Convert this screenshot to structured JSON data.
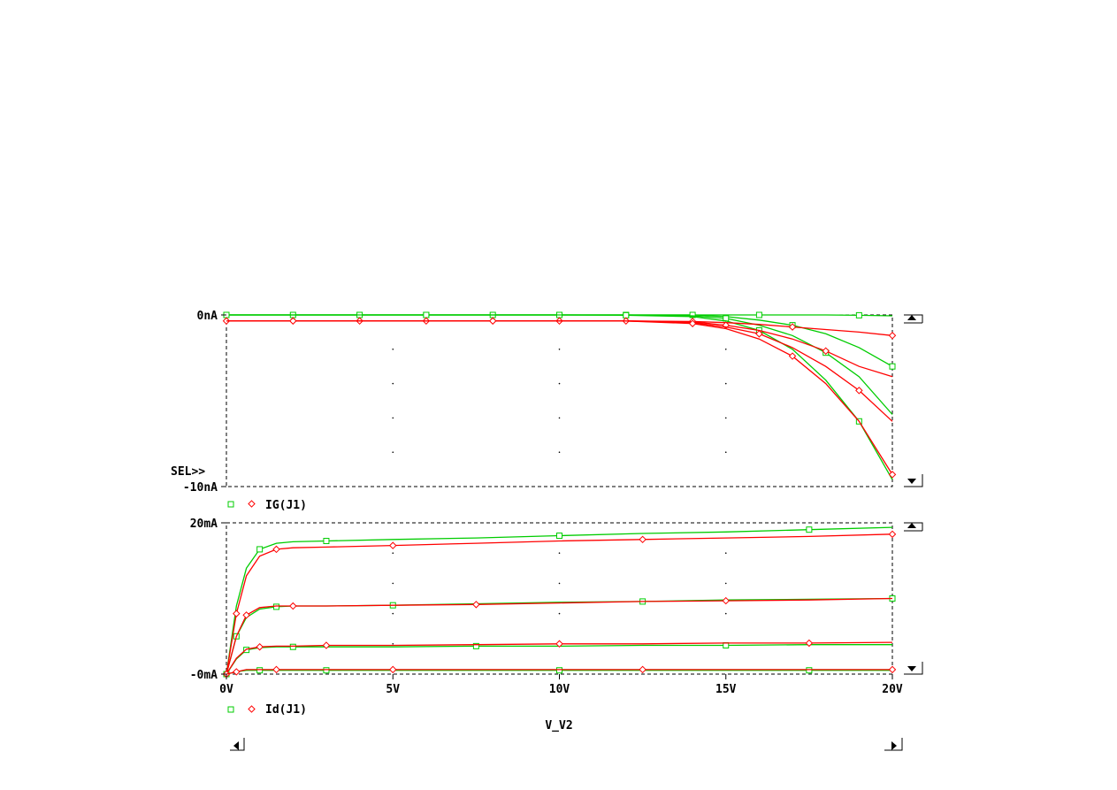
{
  "chart_data": [
    {
      "type": "line",
      "ylim": [
        -10,
        0
      ],
      "y_ticks": [
        "0nA",
        "-10nA"
      ],
      "selector_label": "SEL>>",
      "legend": {
        "marker_colors": [
          "#00cc00",
          "#ff0000"
        ],
        "label": "IG(J1)"
      },
      "grid": true,
      "series": [
        {
          "color": "#00cc00",
          "marker": "square",
          "x": [
            0,
            2,
            4,
            6,
            8,
            10,
            12,
            14,
            15,
            16,
            17,
            18,
            19,
            20
          ],
          "values": [
            0,
            0,
            0,
            0,
            0,
            0,
            0,
            0,
            0,
            0,
            0,
            0,
            -0.02,
            -0.05
          ]
        },
        {
          "color": "#00cc00",
          "marker": "square",
          "x": [
            0,
            2,
            4,
            6,
            8,
            10,
            12,
            14,
            15,
            16,
            17,
            18,
            19,
            20
          ],
          "values": [
            0,
            0,
            0,
            0,
            0,
            0,
            0,
            0,
            -0.1,
            -0.3,
            -0.6,
            -1.1,
            -1.9,
            -3.0
          ]
        },
        {
          "color": "#00cc00",
          "marker": "square",
          "x": [
            0,
            2,
            4,
            6,
            8,
            10,
            12,
            14,
            15,
            16,
            17,
            18,
            19,
            20
          ],
          "values": [
            0,
            0,
            0,
            0,
            0,
            0,
            0,
            -0.05,
            -0.2,
            -0.6,
            -1.2,
            -2.2,
            -3.6,
            -5.8
          ]
        },
        {
          "color": "#00cc00",
          "marker": "square",
          "x": [
            0,
            2,
            4,
            6,
            8,
            10,
            12,
            14,
            15,
            16,
            17,
            18,
            19,
            20
          ],
          "values": [
            0,
            0,
            0,
            0,
            0,
            0,
            -0.02,
            -0.1,
            -0.35,
            -0.9,
            -2.0,
            -3.8,
            -6.2,
            -9.6
          ]
        },
        {
          "color": "#ff0000",
          "marker": "diamond",
          "x": [
            0,
            2,
            4,
            6,
            8,
            10,
            12,
            14,
            15,
            16,
            17,
            18,
            19,
            20
          ],
          "values": [
            -0.35,
            -0.35,
            -0.35,
            -0.35,
            -0.35,
            -0.35,
            -0.35,
            -0.38,
            -0.45,
            -0.55,
            -0.7,
            -0.85,
            -1.0,
            -1.2
          ]
        },
        {
          "color": "#ff0000",
          "marker": "diamond",
          "x": [
            0,
            2,
            4,
            6,
            8,
            10,
            12,
            14,
            15,
            16,
            17,
            18,
            19,
            20
          ],
          "values": [
            -0.35,
            -0.35,
            -0.35,
            -0.35,
            -0.35,
            -0.35,
            -0.35,
            -0.4,
            -0.6,
            -0.9,
            -1.4,
            -2.1,
            -3.0,
            -3.6
          ]
        },
        {
          "color": "#ff0000",
          "marker": "diamond",
          "x": [
            0,
            2,
            4,
            6,
            8,
            10,
            12,
            14,
            15,
            16,
            17,
            18,
            19,
            20
          ],
          "values": [
            -0.35,
            -0.35,
            -0.35,
            -0.35,
            -0.35,
            -0.35,
            -0.35,
            -0.45,
            -0.7,
            -1.1,
            -1.9,
            -3.0,
            -4.4,
            -6.2
          ]
        },
        {
          "color": "#ff0000",
          "marker": "diamond",
          "x": [
            0,
            2,
            4,
            6,
            8,
            10,
            12,
            14,
            15,
            16,
            17,
            18,
            19,
            20
          ],
          "values": [
            -0.35,
            -0.35,
            -0.35,
            -0.35,
            -0.35,
            -0.35,
            -0.35,
            -0.5,
            -0.8,
            -1.4,
            -2.4,
            -4.0,
            -6.2,
            -9.3
          ]
        }
      ]
    },
    {
      "type": "line",
      "ylim": [
        0,
        20
      ],
      "y_ticks": [
        "20mA",
        "-0mA"
      ],
      "x_ticks": [
        "0V",
        "5V",
        "10V",
        "15V",
        "20V"
      ],
      "xlim": [
        0,
        20
      ],
      "xlabel": "V_V2",
      "legend": {
        "marker_colors": [
          "#00cc00",
          "#ff0000"
        ],
        "label": "Id(J1)"
      },
      "grid": true,
      "series": [
        {
          "color": "#00cc00",
          "marker": "square",
          "x": [
            0,
            0.3,
            0.6,
            1,
            1.5,
            2,
            3,
            5,
            7.5,
            10,
            12.5,
            15,
            17.5,
            20
          ],
          "values": [
            0,
            9,
            14,
            16.5,
            17.3,
            17.5,
            17.6,
            17.8,
            18.0,
            18.3,
            18.6,
            18.8,
            19.1,
            19.4
          ]
        },
        {
          "color": "#00cc00",
          "marker": "square",
          "x": [
            0,
            0.3,
            0.6,
            1,
            1.5,
            2,
            3,
            5,
            7.5,
            10,
            12.5,
            15,
            17.5,
            20
          ],
          "values": [
            0,
            5,
            7.5,
            8.6,
            8.9,
            9.0,
            9.0,
            9.1,
            9.3,
            9.5,
            9.6,
            9.8,
            9.9,
            10.0
          ]
        },
        {
          "color": "#00cc00",
          "marker": "square",
          "x": [
            0,
            0.3,
            0.6,
            1,
            1.5,
            2,
            3,
            5,
            7.5,
            10,
            12.5,
            15,
            17.5,
            20
          ],
          "values": [
            0,
            2,
            3.2,
            3.5,
            3.6,
            3.6,
            3.6,
            3.6,
            3.7,
            3.7,
            3.8,
            3.8,
            3.9,
            3.9
          ]
        },
        {
          "color": "#00cc00",
          "marker": "square",
          "x": [
            0,
            0.3,
            0.6,
            1,
            1.5,
            2,
            3,
            5,
            7.5,
            10,
            12.5,
            15,
            17.5,
            20
          ],
          "values": [
            0,
            0.3,
            0.5,
            0.5,
            0.5,
            0.5,
            0.5,
            0.5,
            0.5,
            0.5,
            0.5,
            0.5,
            0.5,
            0.5
          ]
        },
        {
          "color": "#ff0000",
          "marker": "diamond",
          "x": [
            0,
            0.3,
            0.6,
            1,
            1.5,
            2,
            3,
            5,
            7.5,
            10,
            12.5,
            15,
            17.5,
            20
          ],
          "values": [
            0,
            8,
            13,
            15.6,
            16.5,
            16.7,
            16.8,
            17.0,
            17.3,
            17.6,
            17.8,
            18.0,
            18.2,
            18.5
          ]
        },
        {
          "color": "#ff0000",
          "marker": "diamond",
          "x": [
            0,
            0.3,
            0.6,
            1,
            1.5,
            2,
            3,
            5,
            7.5,
            10,
            12.5,
            15,
            17.5,
            20
          ],
          "values": [
            0,
            5,
            7.8,
            8.8,
            9.0,
            9.0,
            9.0,
            9.1,
            9.2,
            9.4,
            9.6,
            9.7,
            9.8,
            10.0
          ]
        },
        {
          "color": "#ff0000",
          "marker": "diamond",
          "x": [
            0,
            0.3,
            0.6,
            1,
            1.5,
            2,
            3,
            5,
            7.5,
            10,
            12.5,
            15,
            17.5,
            20
          ],
          "values": [
            0,
            2.1,
            3.3,
            3.6,
            3.7,
            3.7,
            3.8,
            3.8,
            3.9,
            4.0,
            4.0,
            4.1,
            4.1,
            4.2
          ]
        },
        {
          "color": "#ff0000",
          "marker": "diamond",
          "x": [
            0,
            0.3,
            0.6,
            1,
            1.5,
            2,
            3,
            5,
            7.5,
            10,
            12.5,
            15,
            17.5,
            20
          ],
          "values": [
            0,
            0.3,
            0.6,
            0.6,
            0.6,
            0.6,
            0.6,
            0.6,
            0.6,
            0.6,
            0.6,
            0.6,
            0.6,
            0.6
          ]
        }
      ]
    }
  ]
}
